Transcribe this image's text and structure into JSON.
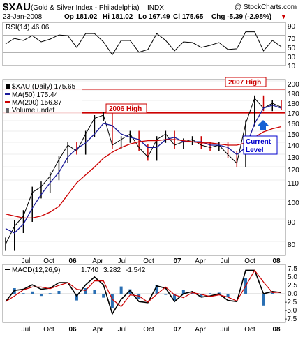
{
  "header": {
    "symbol": "$XAU",
    "name": "(Gold & Silver Index - Philadelphia)",
    "exchange": "INDX",
    "date": "23-Jan-2008",
    "open": "Op 181.02",
    "high": "Hi 181.02",
    "low": "Lo 167.49",
    "close": "Cl 175.65",
    "change": "Chg -5.39 (-2.98%)",
    "change_arrow": "▼",
    "watermark": "@ StockCharts.com"
  },
  "rsi": {
    "label": "RSI(14) 46.06",
    "y_ticks": [
      "90",
      "70",
      "50",
      "30",
      "10"
    ],
    "levels": [
      70,
      30
    ],
    "ylim": [
      0,
      100
    ],
    "color": "#000000"
  },
  "price": {
    "legend_title": "$XAU (Daily) 175.65",
    "legend_ma50": "MA(50) 175.44",
    "legend_ma200": "MA(200) 156.87",
    "legend_volume": "Volume undef",
    "y_ticks": [
      "200",
      "190",
      "180",
      "170",
      "160",
      "150",
      "140",
      "130",
      "120",
      "110",
      "100",
      "90",
      "80"
    ],
    "annotation_2007": "2007 High",
    "annotation_2006": "2006 High",
    "annotation_current": [
      "Current",
      "Level"
    ],
    "line_2007_high": 194.5,
    "line_2006_high": 170.3,
    "colors": {
      "price_up": "#000000",
      "price_down": "#cc0000",
      "ma50": "#1a1a99",
      "ma200": "#cc0000",
      "annotation_line": "#cc0000",
      "arrow": "#1560d4",
      "current_text": "#0000cc",
      "support_line": "#33aa33"
    }
  },
  "macd": {
    "label_prefix": "MACD(12,26,9)",
    "macd_value": "1.740",
    "signal_value": "3.282",
    "hist_value": "-1.542",
    "y_ticks": [
      "7.5",
      "5.0",
      "2.5",
      "0.0",
      "-2.5",
      "-5.0",
      "-7.5"
    ],
    "colors": {
      "macd": "#000000",
      "signal": "#cc0000",
      "hist": "#2a6fb3"
    }
  },
  "x_labels": [
    "Jul",
    "Oct",
    "06",
    "Apr",
    "Jul",
    "Oct",
    "07",
    "Apr",
    "Jul",
    "Oct",
    "08"
  ],
  "chart_data": {
    "type": "line",
    "title": "$XAU (Gold & Silver Index - Philadelphia) INDX",
    "x": [
      "2005-06",
      "2005-07",
      "2005-08",
      "2005-09",
      "2005-10",
      "2005-11",
      "2005-12",
      "2006-01",
      "2006-02",
      "2006-03",
      "2006-04",
      "2006-05",
      "2006-06",
      "2006-07",
      "2006-08",
      "2006-09",
      "2006-10",
      "2006-11",
      "2006-12",
      "2007-01",
      "2007-02",
      "2007-03",
      "2007-04",
      "2007-05",
      "2007-06",
      "2007-07",
      "2007-08",
      "2007-09",
      "2007-10",
      "2007-11",
      "2007-12",
      "2008-01"
    ],
    "series": [
      {
        "name": "$XAU",
        "values": [
          80,
          88,
          93,
          105,
          108,
          115,
          128,
          140,
          135,
          150,
          165,
          168,
          140,
          145,
          150,
          138,
          130,
          145,
          150,
          140,
          143,
          145,
          140,
          138,
          140,
          132,
          125,
          160,
          185,
          175,
          180,
          176
        ]
      },
      {
        "name": "MA(50)",
        "values": [
          87,
          85,
          89,
          97,
          104,
          110,
          118,
          130,
          137,
          142,
          150,
          160,
          158,
          150,
          147,
          145,
          138,
          138,
          145,
          147,
          143,
          143,
          143,
          140,
          140,
          138,
          132,
          138,
          160,
          175,
          178,
          175
        ]
      },
      {
        "name": "MA(200)",
        "values": [
          94,
          93,
          92,
          92,
          93,
          95,
          98,
          104,
          110,
          116,
          122,
          129,
          134,
          138,
          141,
          143,
          144,
          144,
          145,
          145,
          144,
          143,
          142,
          142,
          141,
          140,
          140,
          142,
          147,
          152,
          155,
          157
        ]
      }
    ],
    "ylim": [
      75,
      205
    ],
    "rsi_ylim": [
      0,
      100
    ],
    "macd_ylim": [
      -8.5,
      8.5
    ]
  }
}
